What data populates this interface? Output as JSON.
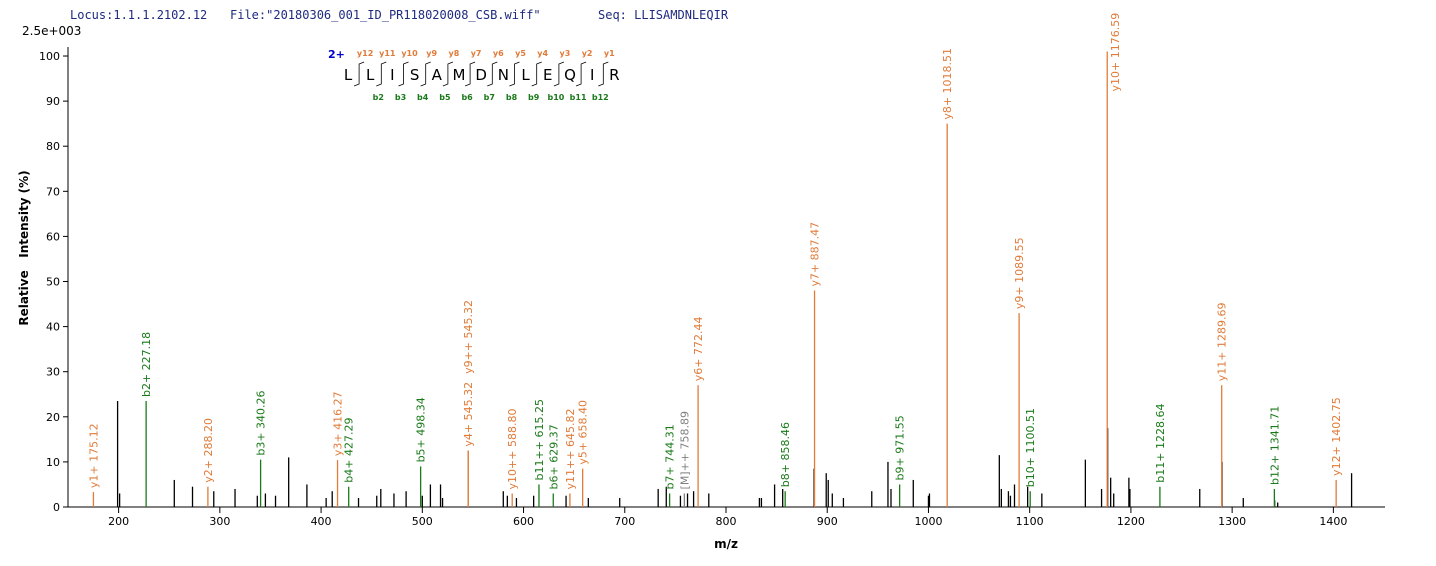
{
  "chart_data": {
    "type": "spectrum",
    "header": {
      "locus": "Locus:1.1.1.2102.12",
      "file": "File:\"20180306_001_ID_PR118020008_CSB.wiff\"",
      "seq": "Seq: LLISAMDNLEQIR"
    },
    "intensity_max_label": "2.5e+003",
    "xlabel": "m/z",
    "ylabel": "Relative   Intensity (%)",
    "xlim": [
      150,
      1451
    ],
    "ylim": [
      0,
      102
    ],
    "xticks": [
      200,
      300,
      400,
      500,
      600,
      700,
      800,
      900,
      1000,
      1100,
      1200,
      1300,
      1400
    ],
    "yticks": [
      0,
      10,
      20,
      30,
      40,
      50,
      60,
      70,
      80,
      90,
      100
    ],
    "sequence_diagram": {
      "charge": "2+",
      "residues": [
        "L",
        "L",
        "I",
        "S",
        "A",
        "M",
        "D",
        "N",
        "L",
        "E",
        "Q",
        "I",
        "R"
      ],
      "y_labels": [
        "y12",
        "y11",
        "y10",
        "y9",
        "y8",
        "y7",
        "y6",
        "y5",
        "y4",
        "y3",
        "y2",
        "y1"
      ],
      "b_labels": [
        "b2",
        "b3",
        "b4",
        "b5",
        "b6",
        "b7",
        "b8",
        "b9",
        "b10",
        "b11",
        "b12"
      ],
      "y_color": "#e07b39",
      "b_color": "#1a7a1a",
      "charge_color": "#0000cc"
    },
    "series": [
      {
        "color": "#000000",
        "x": [
          199,
          201,
          255,
          273,
          294,
          315,
          337,
          345,
          355,
          368,
          386,
          405,
          411,
          437,
          455,
          459,
          472,
          484,
          500,
          508,
          518,
          520,
          580,
          584,
          593,
          610,
          642,
          664,
          695,
          733,
          741,
          755,
          762,
          768,
          783,
          833,
          835,
          848,
          856,
          887,
          899,
          901,
          905,
          916,
          944,
          960,
          963,
          985,
          1000,
          1001,
          1070,
          1072,
          1079,
          1081,
          1085,
          1098,
          1112,
          1155,
          1171,
          1177,
          1180,
          1183,
          1198,
          1199,
          1268,
          1290,
          1311,
          1342,
          1345,
          1418
        ],
        "values": [
          23.5,
          3,
          6,
          4.5,
          3.5,
          4,
          2.5,
          3,
          2.5,
          11,
          5,
          2,
          3.5,
          2,
          2.5,
          4,
          3,
          3.5,
          2.5,
          5,
          5,
          2,
          3.5,
          2.5,
          2,
          2.5,
          2.5,
          2,
          2,
          4,
          4.5,
          2.5,
          3,
          3.5,
          3,
          2,
          2,
          5,
          4,
          8.5,
          7.5,
          6,
          3,
          2,
          3.5,
          10,
          4,
          6,
          2.5,
          3,
          11.5,
          4,
          3.5,
          2.5,
          5,
          4.5,
          3,
          10.5,
          4,
          17.5,
          6.5,
          3,
          6.5,
          4,
          4,
          10,
          2,
          1.5,
          1,
          7.5
        ]
      },
      {
        "color": "#e07b39",
        "x": [
          175.12,
          288.2,
          416.27,
          545.32,
          545.32,
          588.8,
          645.82,
          658.4,
          772.44,
          887.47,
          1018.51,
          1089.55,
          1176.59,
          1289.69,
          1402.75
        ],
        "values": [
          3.3,
          4.5,
          10.4,
          12.5,
          12.5,
          3,
          3,
          8.5,
          27,
          48,
          85,
          43,
          101,
          27,
          6
        ],
        "labels": [
          "y1+ 175.12",
          "y2+ 288.20",
          "y3+ 416.27",
          "y4+ 545.32",
          "y9++ 545.32",
          "y10++ 588.80",
          "y11++ 645.82",
          "y5+ 658.40",
          "y6+ 772.44",
          "y7+ 887.47",
          "y8+ 1018.51",
          "y9+ 1089.55",
          "y10+ 1176.59",
          "y11+ 1289.69",
          "y12+ 1402.75"
        ]
      },
      {
        "color": "#1a7a1a",
        "x": [
          227.18,
          340.26,
          427.29,
          498.34,
          615.25,
          629.37,
          744.31,
          858.46,
          971.55,
          1100.51,
          1228.64,
          1341.71
        ],
        "values": [
          23.5,
          10.5,
          4.5,
          9,
          5,
          3,
          3,
          3.5,
          5,
          3.5,
          4.5,
          4
        ],
        "labels": [
          "b2+ 227.18",
          "b3+ 340.26",
          "b4+ 427.29",
          "b5+ 498.34",
          "b11++ 615.25",
          "b6+ 629.37",
          "b7+ 744.31",
          "b8+ 858.46",
          "b9+ 971.55",
          "b10+ 1100.51",
          "b11+ 1228.64",
          "b12+ 1341.71"
        ]
      },
      {
        "color": "#808080",
        "x": [
          758.89
        ],
        "values": [
          3
        ],
        "labels": [
          "[M]++ 758.89"
        ]
      }
    ]
  }
}
